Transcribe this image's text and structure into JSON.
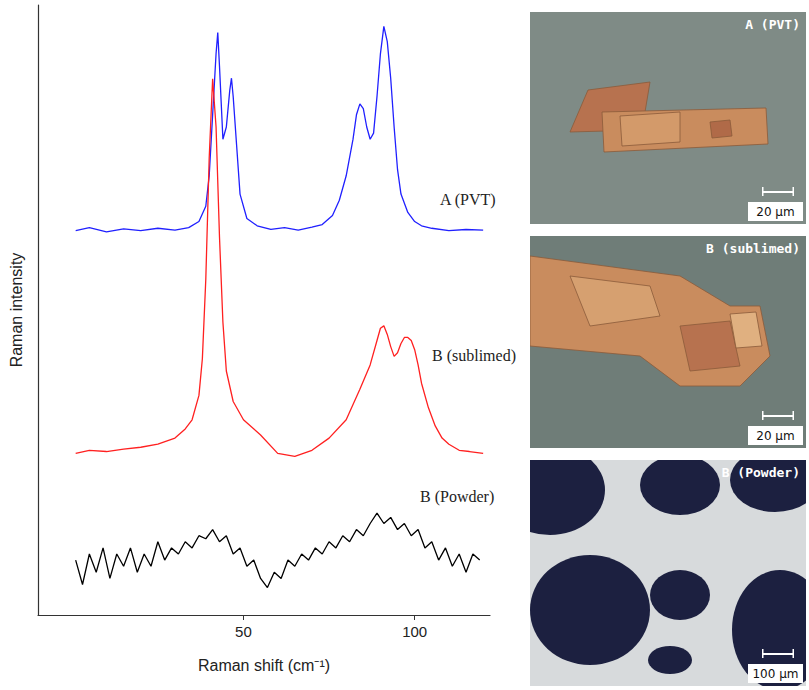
{
  "chart_data": {
    "type": "line",
    "x_label": "Raman shift (cm⁻¹)",
    "y_label": "Raman intensity",
    "xlim": [
      -10,
      122
    ],
    "xticks": [
      50,
      100
    ],
    "ylim": [
      0,
      100
    ],
    "tick_labels": "x",
    "grid": false,
    "series": [
      {
        "name": "A (PVT)",
        "color": "#2020ff",
        "x": [
          1,
          5,
          10,
          15,
          20,
          25,
          30,
          34,
          37,
          39,
          40,
          41,
          42,
          42.5,
          43,
          44,
          45,
          46,
          46.5,
          47,
          48,
          49,
          51,
          54,
          58,
          62,
          66,
          70,
          73,
          76,
          78,
          80,
          82,
          83,
          84,
          85,
          86,
          87,
          88,
          89,
          90,
          91,
          92,
          93,
          94,
          95,
          96,
          98,
          100,
          102,
          105,
          110,
          115,
          120
        ],
        "values": [
          63,
          63.5,
          62.8,
          63.3,
          63,
          63.4,
          63.1,
          63.5,
          64.5,
          67,
          72,
          82,
          92,
          95.5,
          90,
          78,
          80,
          86,
          88,
          85,
          77,
          69,
          65,
          63.8,
          63.2,
          63.5,
          63.1,
          63.6,
          64,
          65.5,
          68,
          72,
          78,
          82,
          83.8,
          83,
          80,
          78,
          79,
          85,
          92,
          96.5,
          94,
          88,
          80,
          73,
          69,
          66,
          64.5,
          63.8,
          63.4,
          63,
          63.2,
          63.1
        ]
      },
      {
        "name": "B (sublimed)",
        "color": "#ff2020",
        "x": [
          1,
          5,
          10,
          15,
          20,
          25,
          30,
          33,
          35,
          37,
          38,
          39,
          40,
          41,
          42,
          43,
          44,
          45,
          47,
          50,
          55,
          60,
          65,
          70,
          75,
          80,
          84,
          87,
          89,
          90,
          91,
          92,
          93,
          94,
          95,
          96,
          97,
          98,
          99,
          100,
          101,
          102,
          104,
          106,
          108,
          110,
          113,
          116,
          120
        ],
        "values": [
          26.5,
          27,
          26.8,
          27.2,
          27.5,
          28,
          29,
          30.5,
          32,
          36,
          42,
          55,
          75,
          87.9,
          80,
          62,
          48,
          40,
          35,
          32,
          29.5,
          26.5,
          26,
          27,
          29,
          32,
          37,
          41,
          45,
          47,
          47.4,
          46,
          44,
          42.4,
          43,
          44.5,
          45.5,
          45.5,
          45,
          43.5,
          41,
          38,
          34,
          31,
          29,
          28,
          27,
          26.8,
          26.5
        ]
      },
      {
        "name": "B (Powder)",
        "color": "#000000",
        "x": [
          1,
          3,
          5,
          7,
          9,
          11,
          13,
          15,
          17,
          19,
          21,
          23,
          25,
          27,
          29,
          31,
          33,
          35,
          37,
          39,
          41,
          43,
          45,
          47,
          49,
          51,
          53,
          55,
          57,
          59,
          61,
          63,
          65,
          67,
          69,
          71,
          73,
          75,
          77,
          79,
          81,
          83,
          85,
          87,
          89,
          91,
          93,
          95,
          97,
          99,
          101,
          103,
          105,
          107,
          109,
          111,
          113,
          115,
          117,
          119
        ],
        "values": [
          9,
          5,
          10,
          7,
          11,
          6,
          10,
          8,
          11,
          7,
          10,
          8,
          12,
          9,
          11,
          10,
          12,
          11,
          13,
          12.5,
          14,
          12,
          13,
          10,
          11,
          8,
          9,
          6,
          4.5,
          7,
          6,
          9,
          8,
          10,
          9,
          11,
          10,
          12,
          11,
          13,
          12,
          14,
          13,
          15,
          16.7,
          15,
          16,
          14,
          15,
          13,
          14,
          11,
          12,
          9,
          11,
          8,
          10,
          7,
          10,
          9
        ]
      }
    ]
  },
  "micrographs": [
    {
      "title": "A (PVT)",
      "scale_bar": "20 μm"
    },
    {
      "title": "B (sublimed)",
      "scale_bar": "20 μm"
    },
    {
      "title": "B (Powder)",
      "scale_bar": "100 μm"
    }
  ]
}
